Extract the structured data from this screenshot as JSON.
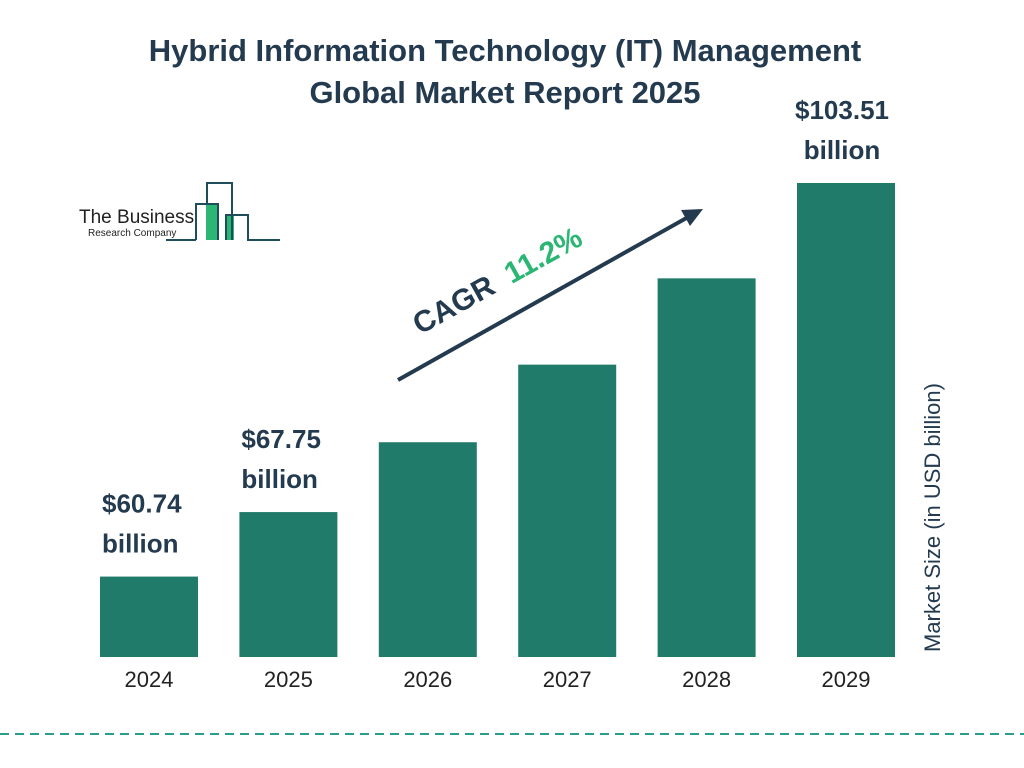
{
  "chart_data": {
    "type": "bar",
    "title_line1": "Hybrid Information Technology (IT) Management",
    "title_line2": "Global Market Report 2025",
    "categories": [
      "2024",
      "2025",
      "2026",
      "2027",
      "2028",
      "2029"
    ],
    "values": [
      60.74,
      67.75,
      75.34,
      83.77,
      93.15,
      103.51
    ],
    "data_labels": [
      {
        "index": 0,
        "value": "$60.74",
        "unit": "billion"
      },
      {
        "index": 1,
        "value": "$67.75",
        "unit": "billion"
      },
      {
        "index": 5,
        "value": "$103.51",
        "unit": "billion"
      }
    ],
    "ylabel": "Market Size (in USD billion)",
    "annotation": {
      "prefix": "CAGR",
      "value": "11.2%"
    },
    "grid": false,
    "colors": {
      "bar": "#217b6b",
      "text": "#233a4f",
      "accent": "#2bb673"
    }
  },
  "logo": {
    "line1": "The Business",
    "line2": "Research Company"
  }
}
